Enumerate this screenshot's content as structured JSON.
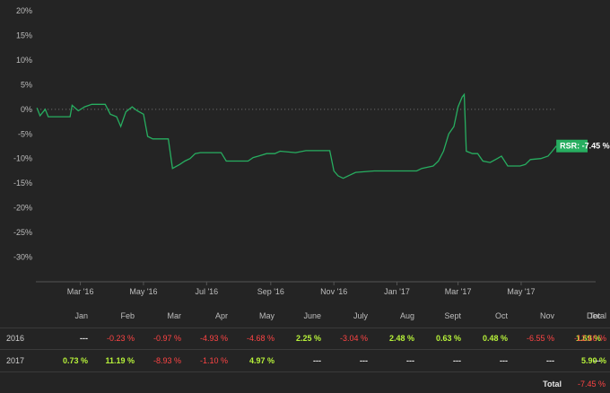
{
  "chart_data": {
    "type": "line",
    "title": "",
    "xlabel": "",
    "ylabel": "",
    "ylim": [
      -35,
      20
    ],
    "yticks": [
      "20%",
      "15%",
      "10%",
      "5%",
      "0%",
      "-5%",
      "-10%",
      "-15%",
      "-20%",
      "-25%",
      "-30%"
    ],
    "ytick_values": [
      20,
      15,
      10,
      5,
      0,
      -5,
      -10,
      -15,
      -20,
      -25,
      -30
    ],
    "xticks": [
      "Mar '16",
      "May '16",
      "Jul '16",
      "Sep '16",
      "Nov '16",
      "Jan '17",
      "Mar '17",
      "May '17"
    ],
    "xtick_dates": [
      "2016-03-01",
      "2016-05-01",
      "2016-07-01",
      "2016-09-01",
      "2016-11-01",
      "2017-01-01",
      "2017-03-01",
      "2017-05-01"
    ],
    "xlim": [
      "2016-01-18",
      "2017-07-12"
    ],
    "line_color": "#27ae60",
    "zero_line": "dotted",
    "series": [
      {
        "name": "RSR",
        "points": [
          [
            "2016-01-19",
            0.3
          ],
          [
            "2016-01-22",
            -1.3
          ],
          [
            "2016-01-27",
            0.0
          ],
          [
            "2016-01-30",
            -1.5
          ],
          [
            "2016-02-12",
            -1.5
          ],
          [
            "2016-02-20",
            -1.5
          ],
          [
            "2016-02-22",
            0.8
          ],
          [
            "2016-02-28",
            -0.3
          ],
          [
            "2016-03-05",
            0.5
          ],
          [
            "2016-03-12",
            1.0
          ],
          [
            "2016-03-25",
            1.0
          ],
          [
            "2016-03-30",
            -1.0
          ],
          [
            "2016-04-05",
            -1.5
          ],
          [
            "2016-04-09",
            -3.5
          ],
          [
            "2016-04-14",
            -0.5
          ],
          [
            "2016-04-20",
            0.5
          ],
          [
            "2016-04-25",
            -0.3
          ],
          [
            "2016-05-01",
            -1.0
          ],
          [
            "2016-05-05",
            -5.5
          ],
          [
            "2016-05-10",
            -6.0
          ],
          [
            "2016-05-25",
            -6.0
          ],
          [
            "2016-05-29",
            -12.0
          ],
          [
            "2016-06-05",
            -11.2
          ],
          [
            "2016-06-10",
            -10.5
          ],
          [
            "2016-06-15",
            -10.0
          ],
          [
            "2016-06-20",
            -9.0
          ],
          [
            "2016-06-25",
            -8.8
          ],
          [
            "2016-07-15",
            -8.8
          ],
          [
            "2016-07-20",
            -10.5
          ],
          [
            "2016-08-10",
            -10.5
          ],
          [
            "2016-08-15",
            -9.8
          ],
          [
            "2016-08-20",
            -9.5
          ],
          [
            "2016-08-28",
            -9.0
          ],
          [
            "2016-09-05",
            -9.0
          ],
          [
            "2016-09-10",
            -8.5
          ],
          [
            "2016-09-25",
            -8.8
          ],
          [
            "2016-10-05",
            -8.4
          ],
          [
            "2016-10-15",
            -8.4
          ],
          [
            "2016-10-28",
            -8.4
          ],
          [
            "2016-11-01",
            -12.5
          ],
          [
            "2016-11-05",
            -13.5
          ],
          [
            "2016-11-10",
            -14.0
          ],
          [
            "2016-11-15",
            -13.5
          ],
          [
            "2016-11-22",
            -12.8
          ],
          [
            "2016-12-10",
            -12.5
          ],
          [
            "2016-12-25",
            -12.5
          ],
          [
            "2017-01-20",
            -12.5
          ],
          [
            "2017-01-25",
            -12.0
          ],
          [
            "2017-02-05",
            -11.5
          ],
          [
            "2017-02-10",
            -10.5
          ],
          [
            "2017-02-15",
            -8.5
          ],
          [
            "2017-02-20",
            -5.0
          ],
          [
            "2017-02-25",
            -3.5
          ],
          [
            "2017-03-01",
            0.5
          ],
          [
            "2017-03-05",
            2.5
          ],
          [
            "2017-03-07",
            3.0
          ],
          [
            "2017-03-09",
            -8.5
          ],
          [
            "2017-03-15",
            -9.0
          ],
          [
            "2017-03-20",
            -9.0
          ],
          [
            "2017-03-25",
            -10.5
          ],
          [
            "2017-04-01",
            -10.8
          ],
          [
            "2017-04-08",
            -10.0
          ],
          [
            "2017-04-12",
            -9.5
          ],
          [
            "2017-04-18",
            -11.5
          ],
          [
            "2017-04-30",
            -11.5
          ],
          [
            "2017-05-05",
            -11.2
          ],
          [
            "2017-05-10",
            -10.2
          ],
          [
            "2017-05-20",
            -10.0
          ],
          [
            "2017-05-27",
            -9.5
          ],
          [
            "2017-05-31",
            -8.5
          ],
          [
            "2017-06-04",
            -7.45
          ]
        ]
      }
    ],
    "annotation": {
      "label": "RSR: -7.45 %",
      "value": -7.45,
      "color": "#27ae60"
    }
  },
  "table": {
    "headers": [
      "Jan",
      "Feb",
      "Mar",
      "Apr",
      "May",
      "June",
      "July",
      "Aug",
      "Sept",
      "Oct",
      "Nov",
      "Dec",
      "Total"
    ],
    "rows": [
      {
        "year": "2016",
        "cells": [
          {
            "text": "---",
            "kind": "nil"
          },
          {
            "text": "-0.23 %",
            "kind": "neg"
          },
          {
            "text": "-0.97 %",
            "kind": "neg"
          },
          {
            "text": "-4.93 %",
            "kind": "neg"
          },
          {
            "text": "-4.68 %",
            "kind": "neg"
          },
          {
            "text": "2.25 %",
            "kind": "pos"
          },
          {
            "text": "-3.04 %",
            "kind": "neg"
          },
          {
            "text": "2.48 %",
            "kind": "pos"
          },
          {
            "text": "0.63 %",
            "kind": "pos"
          },
          {
            "text": "0.48 %",
            "kind": "pos"
          },
          {
            "text": "-6.55 %",
            "kind": "neg"
          },
          {
            "text": "1.69 %",
            "kind": "pos"
          },
          {
            "text": "-12.60 %",
            "kind": "neg"
          }
        ]
      },
      {
        "year": "2017",
        "cells": [
          {
            "text": "0.73 %",
            "kind": "pos"
          },
          {
            "text": "11.19 %",
            "kind": "pos"
          },
          {
            "text": "-8.93 %",
            "kind": "neg"
          },
          {
            "text": "-1.10 %",
            "kind": "neg"
          },
          {
            "text": "4.97 %",
            "kind": "pos"
          },
          {
            "text": "---",
            "kind": "nil"
          },
          {
            "text": "---",
            "kind": "nil"
          },
          {
            "text": "---",
            "kind": "nil"
          },
          {
            "text": "---",
            "kind": "nil"
          },
          {
            "text": "---",
            "kind": "nil"
          },
          {
            "text": "---",
            "kind": "nil"
          },
          {
            "text": "---",
            "kind": "nil"
          },
          {
            "text": "5.90 %",
            "kind": "pos"
          }
        ]
      }
    ],
    "grand_total_label": "Total",
    "grand_total_value": {
      "text": "-7.45 %",
      "kind": "neg"
    }
  }
}
